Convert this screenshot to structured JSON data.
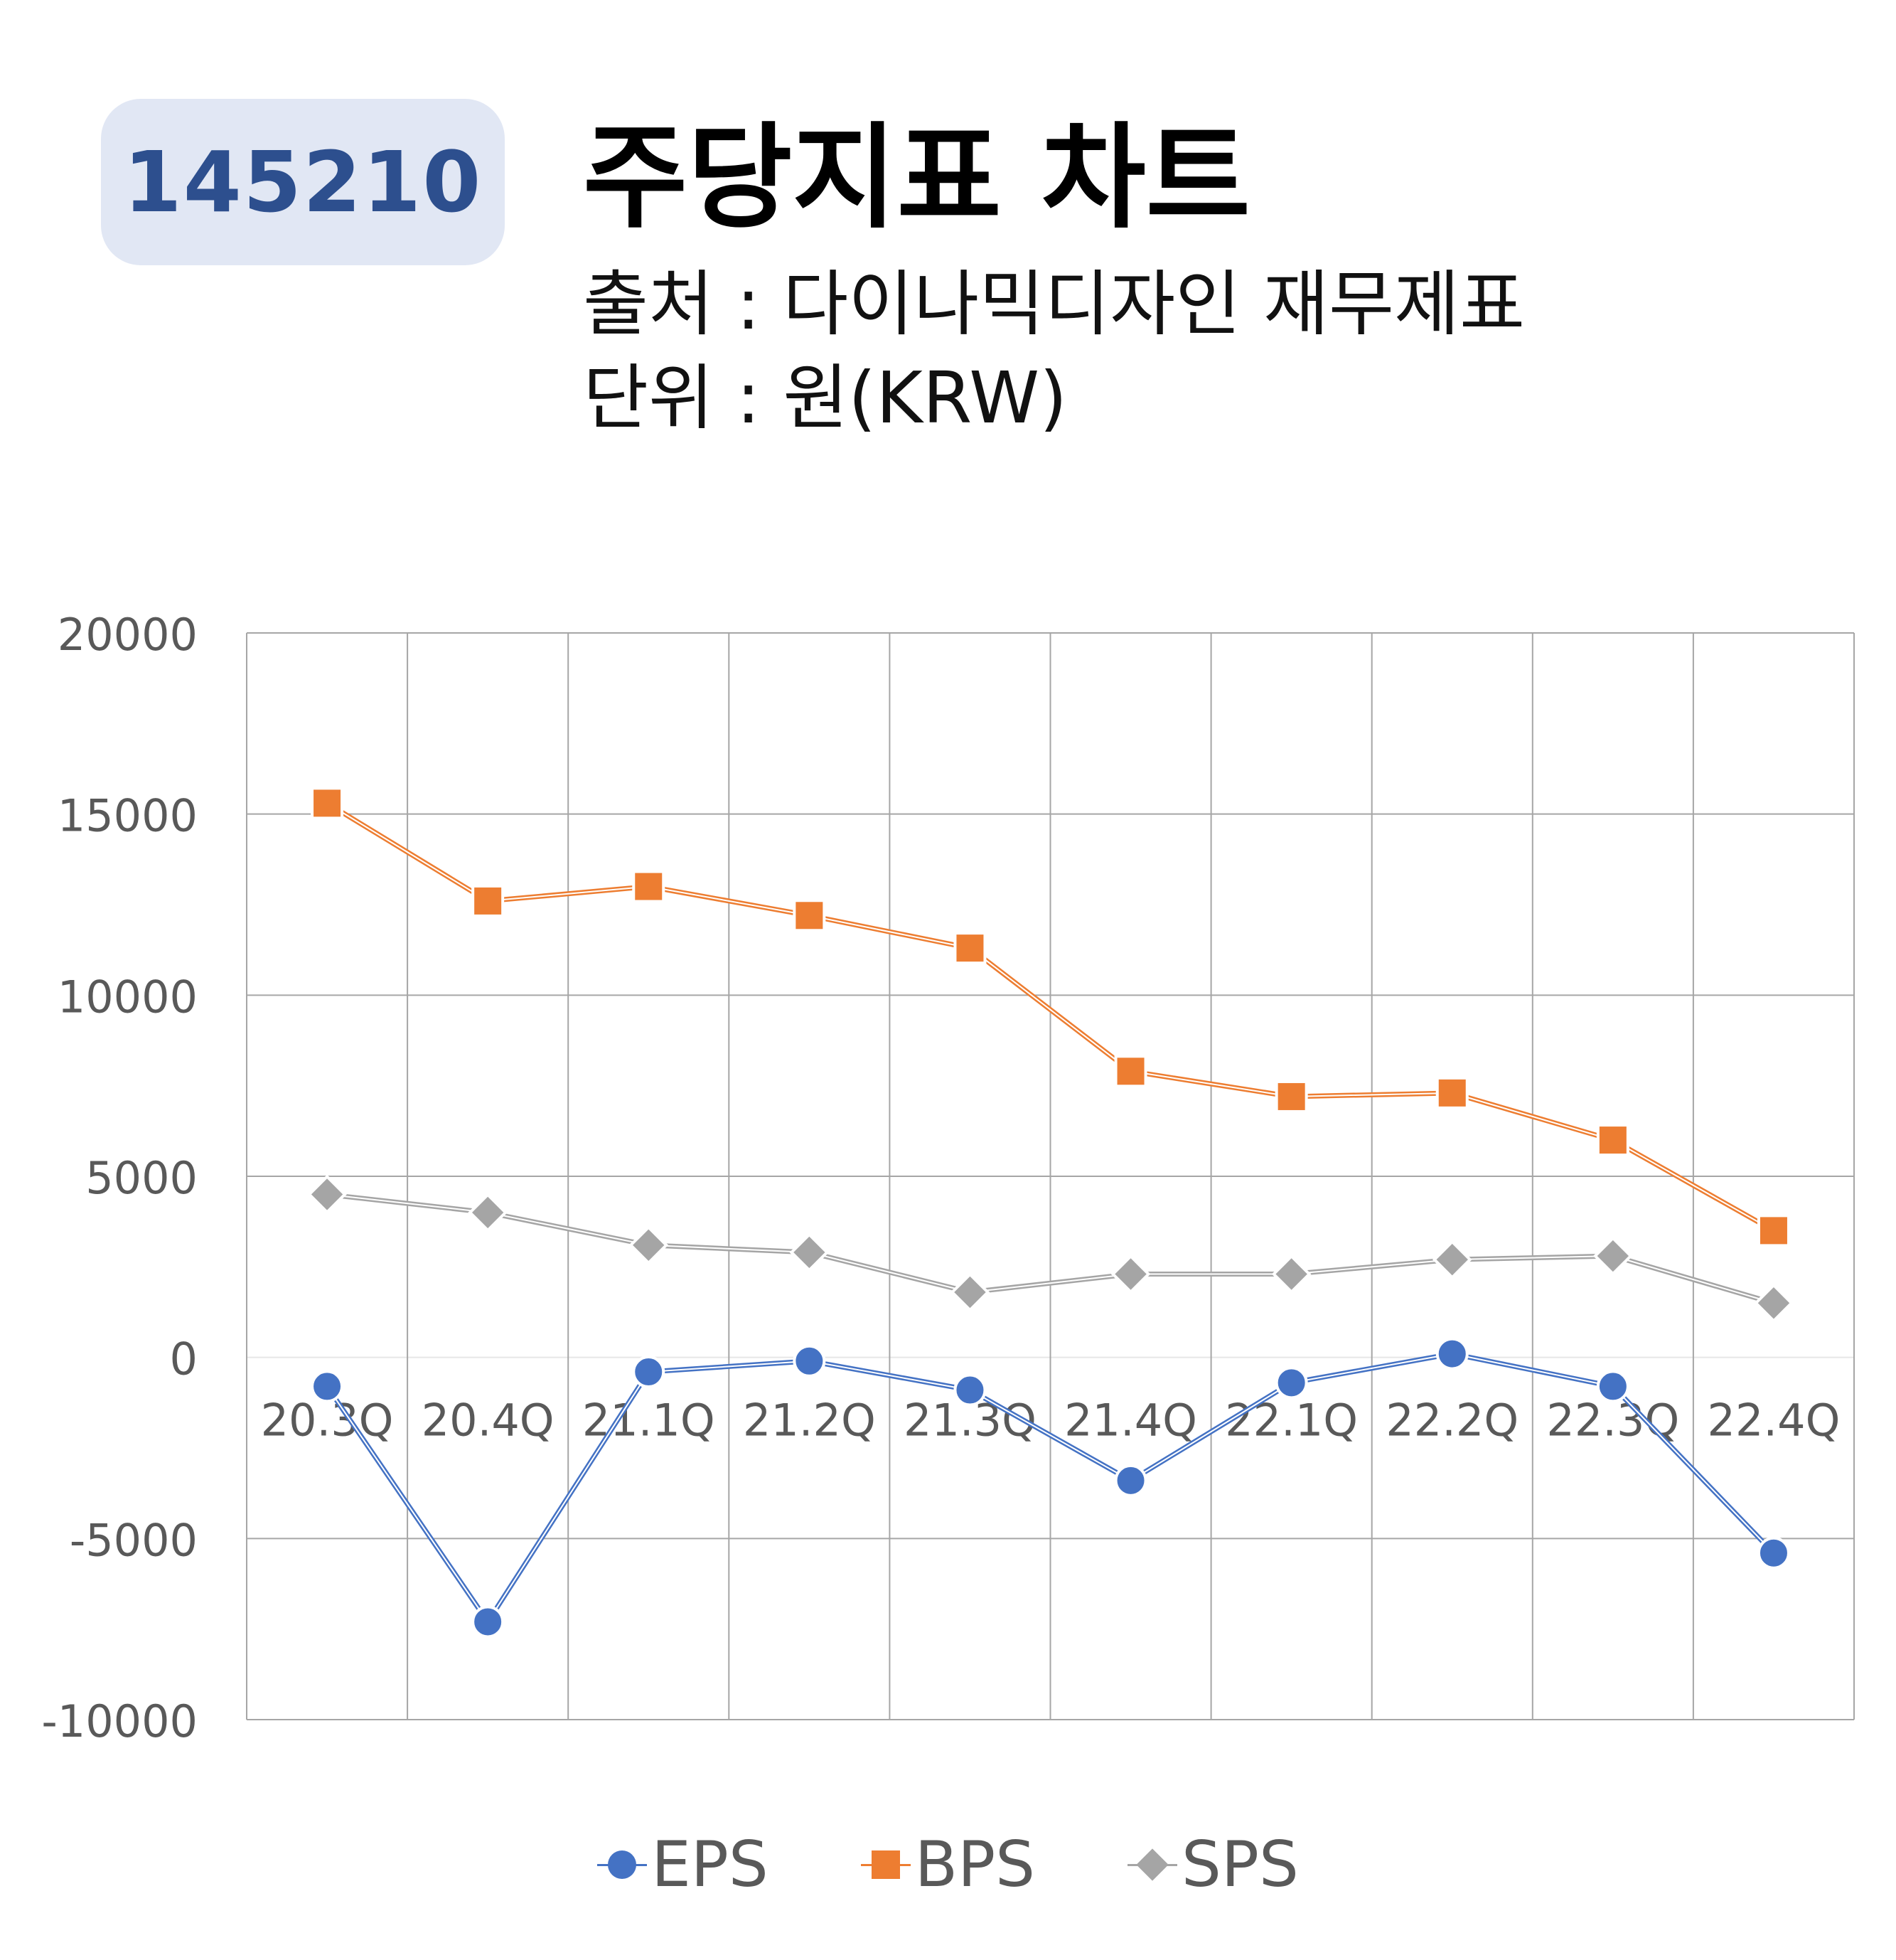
{
  "badge": {
    "code": "145210"
  },
  "header": {
    "title": "주당지표 차트",
    "source": "출처 : 다이나믹디자인 재무제표",
    "unit": "단위 : 원(KRW)"
  },
  "chart_data": {
    "type": "line",
    "categories": [
      "20.3Q",
      "20.4Q",
      "21.1Q",
      "21.2Q",
      "21.3Q",
      "21.4Q",
      "22.1Q",
      "22.2Q",
      "22.3Q",
      "22.4Q"
    ],
    "ylim": [
      -10000,
      20000
    ],
    "yticks": [
      20000,
      15000,
      10000,
      5000,
      0,
      -5000,
      -10000
    ],
    "grid": true,
    "legend_position": "bottom",
    "series": [
      {
        "name": "EPS",
        "color": "#4472c4",
        "marker": "circle",
        "values": [
          -800,
          -7300,
          -400,
          -100,
          -900,
          -3400,
          -700,
          100,
          -800,
          -5400
        ]
      },
      {
        "name": "BPS",
        "color": "#ed7d31",
        "marker": "square",
        "values": [
          15300,
          12600,
          13000,
          12200,
          11300,
          7900,
          7200,
          7300,
          6000,
          3500
        ]
      },
      {
        "name": "SPS",
        "color": "#a5a5a5",
        "marker": "diamond",
        "values": [
          4500,
          4000,
          3100,
          2900,
          1800,
          2300,
          2300,
          2700,
          2800,
          1500
        ]
      }
    ]
  }
}
